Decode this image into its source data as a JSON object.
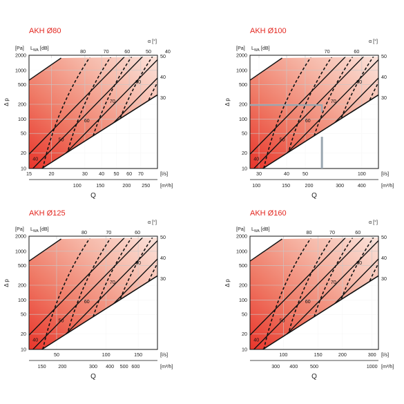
{
  "chart_data": [
    {
      "type": "line",
      "title": "AKH Ø80",
      "ylabel": "Δ p",
      "xlabel": "Q",
      "y_unit": "[Pa]",
      "lwa_unit_prefix": "L",
      "lwa_unit_sub": "WA",
      "lwa_unit_suffix": "[dB]",
      "alpha_label": "α [°]",
      "ls_unit": "[l/s]",
      "m3h_unit": "[m³/h]",
      "yscale": "log",
      "ylim": [
        10,
        2000
      ],
      "yticks": [
        "2000",
        "1000",
        "500",
        "200",
        "100",
        "50",
        "20",
        "10"
      ],
      "xlim_ls": [
        15,
        80
      ],
      "ls_ticks": [
        "15",
        "20",
        "30",
        "40",
        "50",
        "60",
        "70"
      ],
      "m3h_ticks": [
        "100",
        "150",
        "200",
        "250"
      ],
      "lwa_labels": [
        "80",
        "70",
        "60",
        "50",
        "40"
      ],
      "alpha_labels": [
        "50",
        "40",
        "30"
      ],
      "curve_labels": [
        "80",
        "70",
        "60",
        "50",
        "40"
      ]
    },
    {
      "type": "line",
      "title": "AKH Ø100",
      "ylabel": "Δ p",
      "xlabel": "Q",
      "y_unit": "[Pa]",
      "lwa_unit_prefix": "L",
      "lwa_unit_sub": "WA",
      "lwa_unit_suffix": "[dB]",
      "alpha_label": "α [°]",
      "ls_unit": "[l/s]",
      "m3h_unit": "[m³/h]",
      "yscale": "log",
      "ylim": [
        10,
        2000
      ],
      "yticks": [
        "2000",
        "1000",
        "500",
        "200",
        "100",
        "50",
        "20",
        "10"
      ],
      "xlim_ls": [
        25,
        125
      ],
      "ls_ticks": [
        "30",
        "40",
        "50",
        "100"
      ],
      "m3h_ticks": [
        "100",
        "150",
        "200",
        "300",
        "400"
      ],
      "lwa_labels": [
        "70",
        "60"
      ],
      "alpha_labels": [
        "50",
        "40",
        "30"
      ],
      "curve_labels": [
        "80",
        "70",
        "60",
        "50",
        "40"
      ],
      "example_point": {
        "q_ls": 62,
        "dp": 200
      }
    },
    {
      "type": "line",
      "title": "AKH Ø125",
      "ylabel": "Δ p",
      "xlabel": "Q",
      "y_unit": "[Pa]",
      "lwa_unit_prefix": "L",
      "lwa_unit_sub": "WA",
      "lwa_unit_suffix": "[dB]",
      "alpha_label": "α [°]",
      "ls_unit": "[l/s]",
      "m3h_unit": "[m³/h]",
      "yscale": "log",
      "ylim": [
        10,
        2000
      ],
      "yticks": [
        "2000",
        "1000",
        "500",
        "200",
        "100",
        "50",
        "20",
        "10"
      ],
      "xlim_ls": [
        30,
        200
      ],
      "ls_ticks": [
        "50",
        "100",
        "150"
      ],
      "m3h_ticks": [
        "150",
        "200",
        "300",
        "400",
        "500",
        "600"
      ],
      "lwa_labels": [
        "80",
        "70",
        "60"
      ],
      "alpha_labels": [
        "50",
        "40",
        "30"
      ],
      "curve_labels": [
        "80",
        "70",
        "60",
        "50",
        "40"
      ]
    },
    {
      "type": "line",
      "title": "AKH Ø160",
      "ylabel": "Δ p",
      "xlabel": "Q",
      "y_unit": "[Pa]",
      "lwa_unit_prefix": "L",
      "lwa_unit_sub": "WA",
      "lwa_unit_suffix": "[dB]",
      "alpha_label": "α [°]",
      "ls_unit": "[l/s]",
      "m3h_unit": "[m³/h]",
      "yscale": "log",
      "ylim": [
        10,
        2000
      ],
      "yticks": [
        "2000",
        "1000",
        "500",
        "200",
        "100",
        "50",
        "20",
        "10"
      ],
      "xlim_ls": [
        60,
        320
      ],
      "ls_ticks": [
        "100",
        "150",
        "200",
        "300"
      ],
      "m3h_ticks": [
        "300",
        "400",
        "500",
        "1000"
      ],
      "lwa_labels": [
        "80",
        "70",
        "60"
      ],
      "alpha_labels": [
        "50",
        "40",
        "30"
      ],
      "curve_labels": [
        "80",
        "70",
        "60",
        "50",
        "40"
      ]
    }
  ]
}
